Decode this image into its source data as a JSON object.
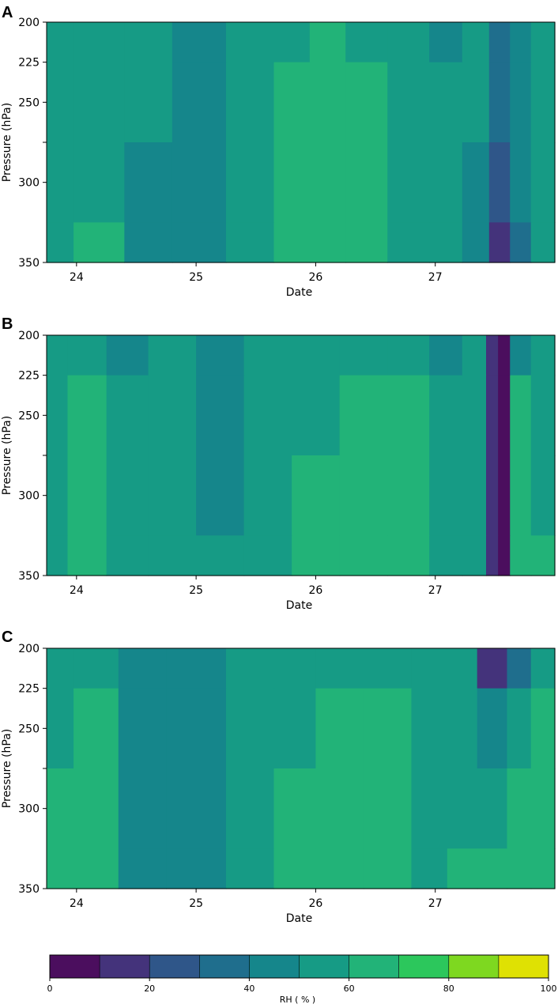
{
  "chart_data": [
    {
      "type": "contourf",
      "panel_label": "A",
      "xlabel": "Date",
      "ylabel": "Pressure (hPa)",
      "x_ticks": [
        24,
        25,
        26,
        27
      ],
      "y_ticks": [
        200,
        225,
        250,
        275,
        300,
        350
      ],
      "y_tick_labels": [
        "200",
        "225",
        "250",
        "",
        "300",
        "350"
      ],
      "y_inverted": true,
      "xlim": [
        23.75,
        28.0
      ],
      "ylim": [
        350,
        200
      ],
      "z_variable": "RH",
      "z_units": "%",
      "x": [
        23.75,
        24.2,
        24.6,
        25.0,
        25.5,
        25.8,
        26.1,
        26.4,
        26.8,
        27.1,
        27.35,
        27.55,
        27.7,
        27.9
      ],
      "y": [
        200,
        250,
        300,
        350
      ],
      "z": [
        [
          55,
          55,
          55,
          45,
          50,
          55,
          60,
          55,
          55,
          45,
          55,
          35,
          40,
          55
        ],
        [
          55,
          55,
          55,
          45,
          50,
          60,
          60,
          60,
          55,
          50,
          50,
          35,
          40,
          55
        ],
        [
          55,
          55,
          45,
          45,
          50,
          60,
          60,
          60,
          55,
          50,
          45,
          25,
          45,
          55
        ],
        [
          55,
          60,
          45,
          45,
          55,
          60,
          65,
          60,
          55,
          55,
          40,
          15,
          35,
          55
        ]
      ]
    },
    {
      "type": "contourf",
      "panel_label": "B",
      "xlabel": "Date",
      "ylabel": "Pressure (hPa)",
      "x_ticks": [
        24,
        25,
        26,
        27
      ],
      "y_ticks": [
        200,
        225,
        250,
        275,
        300,
        350
      ],
      "y_tick_labels": [
        "200",
        "225",
        "250",
        "",
        "300",
        "350"
      ],
      "y_inverted": true,
      "xlim": [
        23.75,
        28.0
      ],
      "ylim": [
        350,
        200
      ],
      "z_variable": "RH",
      "z_units": "%",
      "x": [
        23.75,
        24.1,
        24.4,
        24.8,
        25.2,
        25.6,
        26.0,
        26.4,
        26.8,
        27.1,
        27.35,
        27.5,
        27.55,
        27.7,
        27.9
      ],
      "y": [
        200,
        250,
        300,
        350
      ],
      "z": [
        [
          55,
          55,
          45,
          50,
          45,
          50,
          55,
          55,
          55,
          45,
          55,
          15,
          5,
          45,
          55
        ],
        [
          55,
          60,
          50,
          50,
          45,
          50,
          55,
          60,
          60,
          50,
          55,
          15,
          5,
          60,
          55
        ],
        [
          55,
          60,
          50,
          55,
          45,
          50,
          60,
          60,
          60,
          50,
          55,
          15,
          5,
          60,
          55
        ],
        [
          55,
          60,
          50,
          55,
          50,
          55,
          60,
          65,
          60,
          50,
          55,
          15,
          5,
          65,
          60
        ]
      ]
    },
    {
      "type": "contourf",
      "panel_label": "C",
      "xlabel": "Date",
      "ylabel": "Pressure (hPa)",
      "x_ticks": [
        24,
        25,
        26,
        27
      ],
      "y_ticks": [
        200,
        225,
        250,
        275,
        300,
        350
      ],
      "y_tick_labels": [
        "200",
        "225",
        "250",
        "",
        "300",
        "350"
      ],
      "y_inverted": true,
      "xlim": [
        23.75,
        28.0
      ],
      "ylim": [
        350,
        200
      ],
      "z_variable": "RH",
      "z_units": "%",
      "x": [
        23.75,
        24.2,
        24.5,
        25.0,
        25.5,
        25.8,
        26.2,
        26.6,
        27.0,
        27.2,
        27.5,
        27.7,
        27.9
      ],
      "y": [
        200,
        250,
        300,
        350
      ],
      "z": [
        [
          55,
          55,
          45,
          45,
          50,
          55,
          55,
          55,
          50,
          55,
          15,
          35,
          55
        ],
        [
          55,
          60,
          45,
          45,
          50,
          55,
          60,
          60,
          50,
          55,
          45,
          55,
          60
        ],
        [
          60,
          60,
          45,
          45,
          55,
          60,
          60,
          60,
          50,
          55,
          55,
          60,
          65
        ],
        [
          60,
          60,
          45,
          45,
          55,
          60,
          65,
          60,
          50,
          60,
          60,
          65,
          65
        ]
      ]
    }
  ],
  "colorbar": {
    "label": "RH ( % )",
    "bounds": [
      0,
      10,
      20,
      30,
      40,
      50,
      60,
      70,
      80,
      90,
      100
    ],
    "tick_values": [
      0,
      20,
      40,
      60,
      80,
      100
    ],
    "colors": [
      "#4b0e5e",
      "#44337b",
      "#2f5689",
      "#1f6e8d",
      "#15868b",
      "#169b85",
      "#22b378",
      "#2cc75c",
      "#7ed820",
      "#dfe103"
    ]
  }
}
